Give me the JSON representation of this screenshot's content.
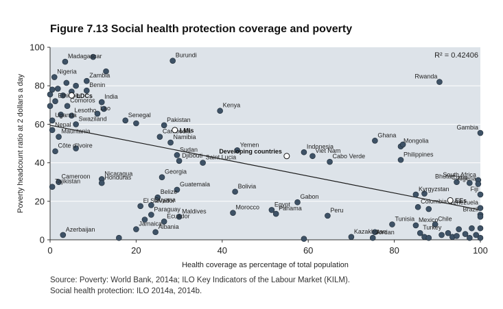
{
  "figure": {
    "title": "Figure 7.13  Social health protection coverage and poverty",
    "source_line1": "Source: Poverty: World Bank, 2014a; ILO Key Indicators of the Labour Market (KILM).",
    "source_line2": "Social health protection: ILO 2014a, 2014b."
  },
  "colors": {
    "plot_background": "#dde3e9",
    "point_fill": "#3e5266",
    "group_point_fill": "#ffffff",
    "trend_line": "#1a1a1a",
    "gridline": "#ffffff"
  },
  "chart_data": {
    "type": "scatter",
    "xlabel": "Health coverage as percentage of total population",
    "ylabel": "Poverty headcount ratio at 2 dollars a day",
    "xlim": [
      0,
      100
    ],
    "ylim": [
      0,
      100
    ],
    "xticks": [
      0,
      20,
      40,
      60,
      80,
      100
    ],
    "yticks": [
      0,
      20,
      40,
      60,
      80,
      100
    ],
    "grid": "horizontal",
    "annotation": "R² = 0.42406",
    "trendline": [
      [
        0,
        59.5
      ],
      [
        100,
        15.5
      ]
    ],
    "points": [
      {
        "x": 3.5,
        "y": 92.5,
        "label": "Madagascar"
      },
      {
        "x": 10,
        "y": 95,
        "label": ""
      },
      {
        "x": 28.5,
        "y": 93,
        "label": "Burundi"
      },
      {
        "x": 1,
        "y": 84.5,
        "label": "Nigeria"
      },
      {
        "x": 13,
        "y": 87.5,
        "label": ""
      },
      {
        "x": 8.5,
        "y": 82.5,
        "label": "Zambia"
      },
      {
        "x": 90.5,
        "y": 82,
        "label": "Rwanda"
      },
      {
        "x": 0.5,
        "y": 78,
        "label": ""
      },
      {
        "x": 1.8,
        "y": 78.5,
        "label": ""
      },
      {
        "x": 3.8,
        "y": 81.5,
        "label": ""
      },
      {
        "x": 6,
        "y": 80,
        "label": ""
      },
      {
        "x": 5,
        "y": 77,
        "label": ""
      },
      {
        "x": 3,
        "y": 75,
        "label": ""
      },
      {
        "x": 8.5,
        "y": 77.5,
        "label": "Benin"
      },
      {
        "x": 0,
        "y": 75.5,
        "label": ""
      },
      {
        "x": 1.2,
        "y": 72,
        "label": "Ethiopia"
      },
      {
        "x": 12,
        "y": 71.5,
        "label": "India"
      },
      {
        "x": 0,
        "y": 69.5,
        "label": ""
      },
      {
        "x": 4,
        "y": 69.5,
        "label": "Comoros"
      },
      {
        "x": 12.5,
        "y": 68,
        "label": ""
      },
      {
        "x": 2.5,
        "y": 65,
        "label": ""
      },
      {
        "x": 5,
        "y": 64.5,
        "label": "Lesotho"
      },
      {
        "x": 11,
        "y": 65.5,
        "label": "Lao"
      },
      {
        "x": 39.5,
        "y": 67,
        "label": "Kenya"
      },
      {
        "x": 0.5,
        "y": 62,
        "label": "Uganda"
      },
      {
        "x": 17.5,
        "y": 62,
        "label": "Senegal"
      },
      {
        "x": 26.5,
        "y": 59.5,
        "label": "Pakistan"
      },
      {
        "x": 6,
        "y": 60,
        "label": "Swaziland"
      },
      {
        "x": 20,
        "y": 60.5,
        "label": ""
      },
      {
        "x": 0.5,
        "y": 57,
        "label": "Nepal"
      },
      {
        "x": 2,
        "y": 53.5,
        "label": "Mauritania"
      },
      {
        "x": 25.5,
        "y": 53.5,
        "label": "Cambodia"
      },
      {
        "x": 28,
        "y": 50.5,
        "label": "Namibia"
      },
      {
        "x": 43.5,
        "y": 46.5,
        "label": "Yemen"
      },
      {
        "x": 59,
        "y": 45.5,
        "label": "Indonesia"
      },
      {
        "x": 75.5,
        "y": 51.5,
        "label": "Ghana"
      },
      {
        "x": 81.5,
        "y": 48.5,
        "label": "Mongolia"
      },
      {
        "x": 82,
        "y": 49.5,
        "label": ""
      },
      {
        "x": 100,
        "y": 55.5,
        "label": "Gambia"
      },
      {
        "x": 1.2,
        "y": 46,
        "label": "Côte d'Ivoire"
      },
      {
        "x": 6,
        "y": 47.5,
        "label": ""
      },
      {
        "x": 29.5,
        "y": 44,
        "label": "Sudan"
      },
      {
        "x": 61,
        "y": 43.5,
        "label": "Viet Nam"
      },
      {
        "x": 81.5,
        "y": 41.5,
        "label": "Philippines"
      },
      {
        "x": 30,
        "y": 41,
        "label": "Djibouti"
      },
      {
        "x": 35.5,
        "y": 40,
        "label": "Saint Lucia"
      },
      {
        "x": 65,
        "y": 40.5,
        "label": "Cabo Verde"
      },
      {
        "x": 12,
        "y": 31.5,
        "label": "Nicaragua"
      },
      {
        "x": 2,
        "y": 30,
        "label": "Cameroon"
      },
      {
        "x": 12,
        "y": 29.5,
        "label": "Honduras"
      },
      {
        "x": 26,
        "y": 32.5,
        "label": "Georgia"
      },
      {
        "x": 29.5,
        "y": 26,
        "label": "Guatemala"
      },
      {
        "x": 43,
        "y": 25,
        "label": "Bolivia"
      },
      {
        "x": 0.5,
        "y": 27.5,
        "label": "Tajikistan"
      },
      {
        "x": 25,
        "y": 22,
        "label": "Belize"
      },
      {
        "x": 94.5,
        "y": 30,
        "label": "Bhutan"
      },
      {
        "x": 97.5,
        "y": 29.5,
        "label": "China"
      },
      {
        "x": 99.5,
        "y": 31,
        "label": "South Africa"
      },
      {
        "x": 99.5,
        "y": 29,
        "label": "Algeria"
      },
      {
        "x": 85,
        "y": 23.5,
        "label": "Kyrgyzstan"
      },
      {
        "x": 87,
        "y": 24,
        "label": ""
      },
      {
        "x": 100,
        "y": 23.5,
        "label": "Fiji"
      },
      {
        "x": 57.5,
        "y": 19.5,
        "label": "Gabon"
      },
      {
        "x": 21,
        "y": 17.5,
        "label": "El Salvador"
      },
      {
        "x": 23.5,
        "y": 18,
        "label": "Guyana"
      },
      {
        "x": 42.5,
        "y": 14,
        "label": "Morocco"
      },
      {
        "x": 51.5,
        "y": 15.5,
        "label": "Egypt"
      },
      {
        "x": 52.5,
        "y": 13.5,
        "label": "Panama"
      },
      {
        "x": 64.5,
        "y": 12.5,
        "label": "Peru"
      },
      {
        "x": 23.5,
        "y": 13,
        "label": "Paraguay"
      },
      {
        "x": 22,
        "y": 10.5,
        "label": ""
      },
      {
        "x": 26.5,
        "y": 9.5,
        "label": "Ecuador"
      },
      {
        "x": 30,
        "y": 12,
        "label": "Maldives"
      },
      {
        "x": 85.5,
        "y": 17,
        "label": "Colombia"
      },
      {
        "x": 88,
        "y": 16,
        "label": ""
      },
      {
        "x": 100,
        "y": 16.5,
        "label": "Venezuela"
      },
      {
        "x": 100,
        "y": 13,
        "label": "Brazil"
      },
      {
        "x": 79.5,
        "y": 8,
        "label": "Tunisia"
      },
      {
        "x": 85,
        "y": 7.5,
        "label": "Mexico"
      },
      {
        "x": 89.5,
        "y": 8,
        "label": "Chile"
      },
      {
        "x": 95,
        "y": 5.5,
        "label": ""
      },
      {
        "x": 98,
        "y": 6,
        "label": ""
      },
      {
        "x": 100,
        "y": 6,
        "label": ""
      },
      {
        "x": 20,
        "y": 5.5,
        "label": "Jamaica"
      },
      {
        "x": 24.5,
        "y": 4,
        "label": "Albania"
      },
      {
        "x": 3,
        "y": 2.5,
        "label": "Azerbaijan"
      },
      {
        "x": 16,
        "y": 1,
        "label": ""
      },
      {
        "x": 59,
        "y": 0.5,
        "label": ""
      },
      {
        "x": 70,
        "y": 1.5,
        "label": "Kazakhstan"
      },
      {
        "x": 75,
        "y": 1,
        "label": "Jordan"
      },
      {
        "x": 75.5,
        "y": 4,
        "label": ""
      },
      {
        "x": 86,
        "y": 3.5,
        "label": "Turkey"
      },
      {
        "x": 87,
        "y": 1.5,
        "label": ""
      },
      {
        "x": 88,
        "y": 1,
        "label": ""
      },
      {
        "x": 91,
        "y": 2.5,
        "label": ""
      },
      {
        "x": 92.5,
        "y": 3.5,
        "label": ""
      },
      {
        "x": 93.5,
        "y": 1.5,
        "label": ""
      },
      {
        "x": 94.5,
        "y": 2,
        "label": ""
      },
      {
        "x": 96.5,
        "y": 3,
        "label": ""
      },
      {
        "x": 97.5,
        "y": 1,
        "label": ""
      },
      {
        "x": 99,
        "y": 2.5,
        "label": ""
      },
      {
        "x": 100,
        "y": 1,
        "label": ""
      },
      {
        "x": 100,
        "y": 12,
        "label": ""
      }
    ],
    "group_points": [
      {
        "x": 5,
        "y": 75,
        "label": "LDCs"
      },
      {
        "x": 29,
        "y": 57,
        "label": "LMIs"
      },
      {
        "x": 55,
        "y": 43.5,
        "label": "Developing countries"
      },
      {
        "x": 93,
        "y": 20.5,
        "label": "EEs"
      }
    ]
  }
}
